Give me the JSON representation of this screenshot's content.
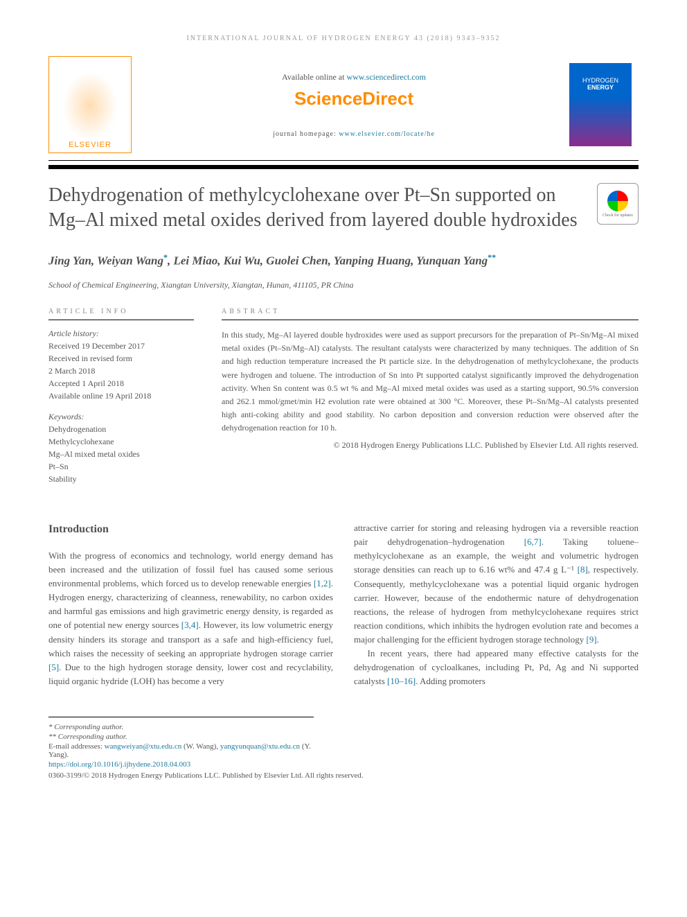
{
  "running_header": "INTERNATIONAL JOURNAL OF HYDROGEN ENERGY 43 (2018) 9343–9352",
  "masthead": {
    "available_prefix": "Available online at ",
    "available_link": "www.sciencedirect.com",
    "sd_logo": "ScienceDirect",
    "homepage_prefix": "journal homepage: ",
    "homepage_link": "www.elsevier.com/locate/he",
    "publisher": "ELSEVIER",
    "cover_line1": "HYDROGEN",
    "cover_line2": "ENERGY"
  },
  "check_updates": "Check for updates",
  "title": "Dehydrogenation of methylcyclohexane over Pt–Sn supported on Mg–Al mixed metal oxides derived from layered double hydroxides",
  "authors_html": "Jing Yan, Weiyan Wang",
  "authors_part2": ", Lei Miao, Kui Wu, Guolei Chen, Yanping Huang, Yunquan Yang",
  "corr1": "*",
  "corr2": "**",
  "affiliation": "School of Chemical Engineering, Xiangtan University, Xiangtan, Hunan, 411105, PR China",
  "article_info_label": "ARTICLE INFO",
  "abstract_label": "ABSTRACT",
  "history": {
    "label": "Article history:",
    "received": "Received 19 December 2017",
    "revised1": "Received in revised form",
    "revised2": "2 March 2018",
    "accepted": "Accepted 1 April 2018",
    "online": "Available online 19 April 2018"
  },
  "keywords": {
    "label": "Keywords:",
    "items": [
      "Dehydrogenation",
      "Methylcyclohexane",
      "Mg–Al mixed metal oxides",
      "Pt–Sn",
      "Stability"
    ]
  },
  "abstract": "In this study, Mg–Al layered double hydroxides were used as support precursors for the preparation of Pt–Sn/Mg–Al mixed metal oxides (Pt–Sn/Mg–Al) catalysts. The resultant catalysts were characterized by many techniques. The addition of Sn and high reduction temperature increased the Pt particle size. In the dehydrogenation of methylcyclohexane, the products were hydrogen and toluene. The introduction of Sn into Pt supported catalyst significantly improved the dehydrogenation activity. When Sn content was 0.5 wt % and Mg–Al mixed metal oxides was used as a starting support, 90.5% conversion and 262.1 mmol/gmet/min H2 evolution rate were obtained at 300 °C. Moreover, these Pt–Sn/Mg–Al catalysts presented high anti-coking ability and good stability. No carbon deposition and conversion reduction were observed after the dehydrogenation reaction for 10 h.",
  "copyright": "© 2018 Hydrogen Energy Publications LLC. Published by Elsevier Ltd. All rights reserved.",
  "intro_heading": "Introduction",
  "body": {
    "col1_p1a": "With the progress of economics and technology, world energy demand has been increased and the utilization of fossil fuel has caused some serious environmental problems, which forced us to develop renewable energies ",
    "ref12": "[1,2]",
    "col1_p1b": ". Hydrogen energy, characterizing of cleanness, renewability, no carbon oxides and harmful gas emissions and high gravimetric energy density, is regarded as one of potential new energy sources ",
    "ref34": "[3,4]",
    "col1_p1c": ". However, its low volumetric energy density hinders its storage and transport as a safe and high-efficiency fuel, which raises the necessity of seeking an appropriate hydrogen storage carrier ",
    "ref5": "[5]",
    "col1_p1d": ". Due to the high hydrogen storage density, lower cost and recyclability, liquid organic hydride (LOH) has become a very",
    "col2_p1a": "attractive carrier for storing and releasing hydrogen via a reversible reaction pair dehydrogenation–hydrogenation ",
    "ref67": "[6,7]",
    "col2_p1b": ". Taking toluene–methylcyclohexane as an example, the weight and volumetric hydrogen storage densities can reach up to 6.16 wt% and 47.4 g L⁻¹ ",
    "ref8": "[8]",
    "col2_p1c": ", respectively. Consequently, methylcyclohexane was a potential liquid organic hydrogen carrier. However, because of the endothermic nature of dehydrogenation reactions, the release of hydrogen from methylcyclohexane requires strict reaction conditions, which inhibits the hydrogen evolution rate and becomes a major challenging for the efficient hydrogen storage technology ",
    "ref9": "[9]",
    "col2_p1d": ".",
    "col2_p2a": "In recent years, there had appeared many effective catalysts for the dehydrogenation of cycloalkanes, including Pt, Pd, Ag and Ni supported catalysts ",
    "ref1016": "[10–16]",
    "col2_p2b": ". Adding promoters"
  },
  "footnotes": {
    "corr1": "* Corresponding author.",
    "corr2": "** Corresponding author.",
    "email_prefix": "E-mail addresses: ",
    "email1": "wangweiyan@xtu.edu.cn",
    "email1_name": " (W. Wang), ",
    "email2": "yangyunquan@xtu.edu.cn",
    "email2_name": " (Y. Yang).",
    "doi": "https://doi.org/10.1016/j.ijhydene.2018.04.003",
    "issn": "0360-3199/© 2018 Hydrogen Energy Publications LLC. Published by Elsevier Ltd. All rights reserved."
  },
  "colors": {
    "link": "#1a7a9e",
    "orange": "#ff8c00",
    "heading": "#505050",
    "body": "#555555"
  }
}
